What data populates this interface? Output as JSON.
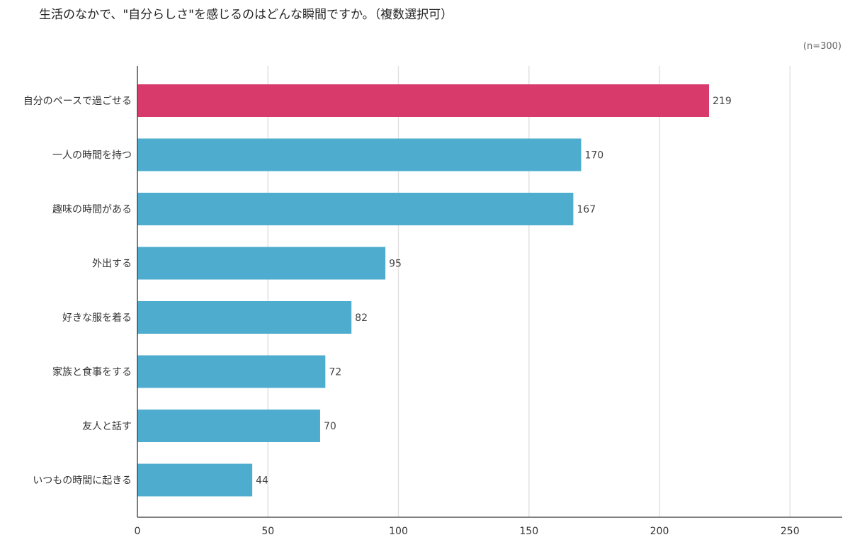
{
  "chart_data": {
    "type": "bar",
    "orientation": "horizontal",
    "title": "生活のなかで、\"自分らしさ\"を感じるのはどんな瞬間ですか。（複数選択可）",
    "note": "(n=300)",
    "categories": [
      "自分のペースで過ごせる",
      "一人の時間を持つ",
      "趣味の時間がある",
      "外出する",
      "好きな服を着る",
      "家族と食事をする",
      "友人と話す",
      "いつもの時間に起きる"
    ],
    "values": [
      219,
      170,
      167,
      95,
      82,
      72,
      70,
      44
    ],
    "highlight_index": 0,
    "colors": {
      "highlight": "#D93A6C",
      "bar": "#4EACCF",
      "grid": "#E2E2E2",
      "axis": "#333333"
    },
    "xlim": [
      0,
      270
    ],
    "xticks": [
      0,
      50,
      100,
      150,
      200,
      250
    ],
    "grid": true,
    "legend": "none"
  }
}
